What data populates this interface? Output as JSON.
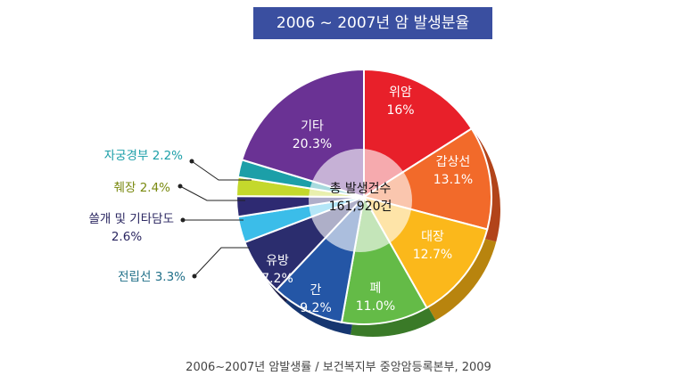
{
  "chart_data": {
    "type": "pie",
    "title": "2006 ~ 2007년 암 발생분율",
    "center_label": [
      "총 발생건수",
      "161,920건"
    ],
    "source": "2006~2007년 암발생률 / 보건복지부 중앙암등록본부, 2009",
    "slices": [
      {
        "name": "위암",
        "value": 16.0,
        "label": "16%",
        "color": "#e8202a",
        "side": "#a01418"
      },
      {
        "name": "갑상선",
        "value": 13.1,
        "label": "13.1%",
        "color": "#f26a2a",
        "side": "#b2441a"
      },
      {
        "name": "대장",
        "value": 12.7,
        "label": "12.7%",
        "color": "#fbb81b",
        "side": "#b8840e"
      },
      {
        "name": "폐",
        "value": 11.0,
        "label": "11.0%",
        "color": "#64bb47",
        "side": "#3a7a28"
      },
      {
        "name": "간",
        "value": 9.2,
        "label": "9.2%",
        "color": "#2456a6",
        "side": "#163670"
      },
      {
        "name": "유방",
        "value": 7.2,
        "label": "7.2%",
        "color": "#2b2d6e",
        "side": "#181a45"
      },
      {
        "name": "전립선",
        "value": 3.3,
        "label": "3.3%",
        "color": "#3bbde9",
        "side": "#2386a8"
      },
      {
        "name": "쓸개 및 기타담도",
        "value": 2.6,
        "label": "2.6%",
        "color": "#2e2a72",
        "side": "#1b184a"
      },
      {
        "name": "췌장",
        "value": 2.4,
        "label": "2.4%",
        "color": "#c4d82c",
        "side": "#8e9c1c"
      },
      {
        "name": "자궁경부",
        "value": 2.2,
        "label": "2.2%",
        "color": "#1c9fa8",
        "side": "#126f76"
      },
      {
        "name": "기타",
        "value": 20.3,
        "label": "20.3%",
        "color": "#6a3294",
        "side": "#451f62"
      }
    ]
  }
}
